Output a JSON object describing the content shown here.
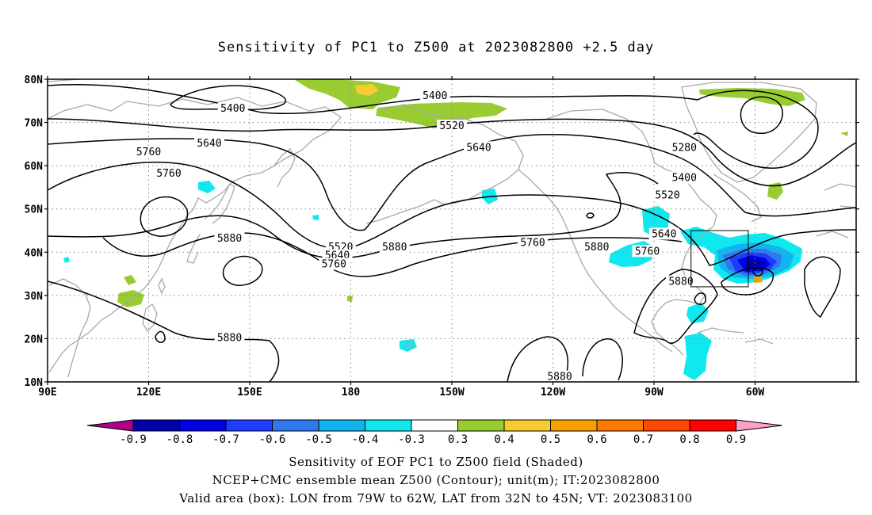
{
  "title": "Sensitivity of PC1 to Z500 at 2023082800 +2.5 day",
  "axes": {
    "lat_ticks": [
      "80N",
      "70N",
      "60N",
      "50N",
      "40N",
      "30N",
      "20N",
      "10N"
    ],
    "lon_ticks": [
      "90E",
      "120E",
      "150E",
      "180",
      "150W",
      "120W",
      "90W",
      "60W"
    ]
  },
  "contour_labels": [
    {
      "text": "5400",
      "lon": 145,
      "lat": 73
    },
    {
      "text": "5400",
      "lon": 205,
      "lat": 76
    },
    {
      "text": "5520",
      "lon": 210,
      "lat": 69
    },
    {
      "text": "5640",
      "lon": 138,
      "lat": 65
    },
    {
      "text": "5640",
      "lon": 218,
      "lat": 64
    },
    {
      "text": "5760",
      "lon": 120,
      "lat": 63
    },
    {
      "text": "5760",
      "lon": 126,
      "lat": 58
    },
    {
      "text": "5880",
      "lon": 144,
      "lat": 43
    },
    {
      "text": "5520",
      "lon": 177,
      "lat": 41
    },
    {
      "text": "5640",
      "lon": 176,
      "lat": 39
    },
    {
      "text": "5760",
      "lon": 175,
      "lat": 37
    },
    {
      "text": "5880",
      "lon": 193,
      "lat": 41
    },
    {
      "text": "5760",
      "lon": 234,
      "lat": 42
    },
    {
      "text": "5880",
      "lon": 253,
      "lat": 41
    },
    {
      "text": "5880",
      "lon": 144,
      "lat": 20
    },
    {
      "text": "5880",
      "lon": 242,
      "lat": 11
    },
    {
      "text": "5280",
      "lon": 279,
      "lat": 64
    },
    {
      "text": "5400",
      "lon": 279,
      "lat": 57
    },
    {
      "text": "5520",
      "lon": 274,
      "lat": 53
    },
    {
      "text": "5640",
      "lon": 273,
      "lat": 44
    },
    {
      "text": "5760",
      "lon": 268,
      "lat": 40
    },
    {
      "text": "5880",
      "lon": 278,
      "lat": 33
    }
  ],
  "colorbar": {
    "labels": [
      "-0.9",
      "-0.8",
      "-0.7",
      "-0.6",
      "-0.5",
      "-0.4",
      "-0.3",
      "0.3",
      "0.4",
      "0.5",
      "0.6",
      "0.7",
      "0.8",
      "0.9"
    ],
    "colors": [
      "#0000a8",
      "#0000e6",
      "#1e3cff",
      "#2f78f0",
      "#12b4f0",
      "#10e8f0",
      "#ffffff",
      "#98cc30",
      "#f8cc30",
      "#f8a000",
      "#ff7800",
      "#ff4800",
      "#ff0000"
    ],
    "low_end_color": "#b0008c",
    "high_end_color": "#ff9ec8"
  },
  "valid_box": {
    "lon_min": 281,
    "lon_max": 298,
    "lat_min": 32,
    "lat_max": 45
  },
  "captions": [
    "Sensitivity of EOF PC1 to Z500 field (Shaded)",
    "NCEP+CMC ensemble mean Z500 (Contour); unit(m); IT:2023082800",
    "Valid area (box): LON from 79W to 62W, LAT from 32N to 45N; VT: 2023083100"
  ]
}
